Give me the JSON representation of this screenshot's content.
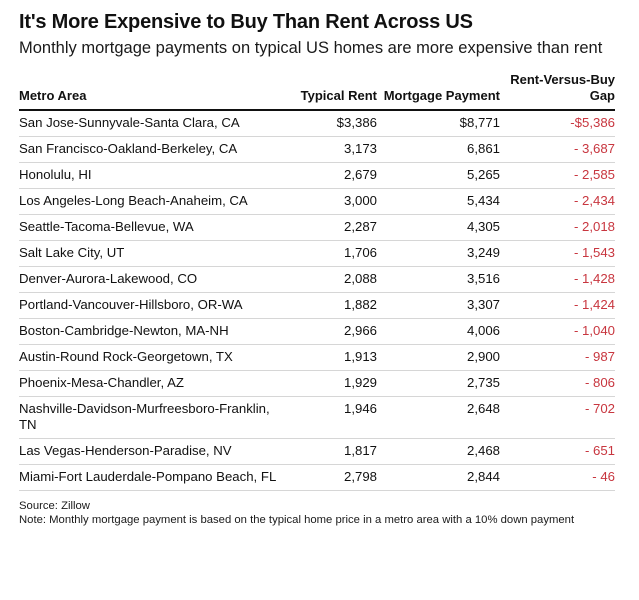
{
  "title": "It's More Expensive to Buy Than Rent Across US",
  "subtitle": "Monthly mortgage payments on typical US homes are more expensive than rent",
  "source": "Source: Zillow",
  "note": "Note: Monthly mortgage payment is based on the typical home price in a metro area with a 10% down payment",
  "chart_data": {
    "type": "table",
    "columns": [
      "Metro Area",
      "Typical Rent",
      "Mortgage Payment",
      "Rent-Versus-Buy Gap"
    ],
    "rows": [
      [
        "San Jose-Sunnyvale-Santa Clara, CA",
        "$3,386",
        "$8,771",
        "-$5,386"
      ],
      [
        "San Francisco-Oakland-Berkeley, CA",
        "3,173",
        "6,861",
        "- 3,687"
      ],
      [
        "Honolulu, HI",
        "2,679",
        "5,265",
        "- 2,585"
      ],
      [
        "Los Angeles-Long Beach-Anaheim, CA",
        "3,000",
        "5,434",
        "- 2,434"
      ],
      [
        "Seattle-Tacoma-Bellevue, WA",
        "2,287",
        "4,305",
        "- 2,018"
      ],
      [
        "Salt Lake City, UT",
        "1,706",
        "3,249",
        "- 1,543"
      ],
      [
        "Denver-Aurora-Lakewood, CO",
        "2,088",
        "3,516",
        "- 1,428"
      ],
      [
        "Portland-Vancouver-Hillsboro, OR-WA",
        "1,882",
        "3,307",
        "- 1,424"
      ],
      [
        "Boston-Cambridge-Newton, MA-NH",
        "2,966",
        "4,006",
        "- 1,040"
      ],
      [
        "Austin-Round Rock-Georgetown, TX",
        "1,913",
        "2,900",
        "- 987"
      ],
      [
        "Phoenix-Mesa-Chandler, AZ",
        "1,929",
        "2,735",
        "- 806"
      ],
      [
        "Nashville-Davidson-Murfreesboro-Franklin, TN",
        "1,946",
        "2,648",
        "- 702"
      ],
      [
        "Las Vegas-Henderson-Paradise, NV",
        "1,817",
        "2,468",
        "- 651"
      ],
      [
        "Miami-Fort Lauderdale-Pompano Beach, FL",
        "2,798",
        "2,844",
        "- 46"
      ]
    ],
    "gap_color": "#c8363f"
  }
}
